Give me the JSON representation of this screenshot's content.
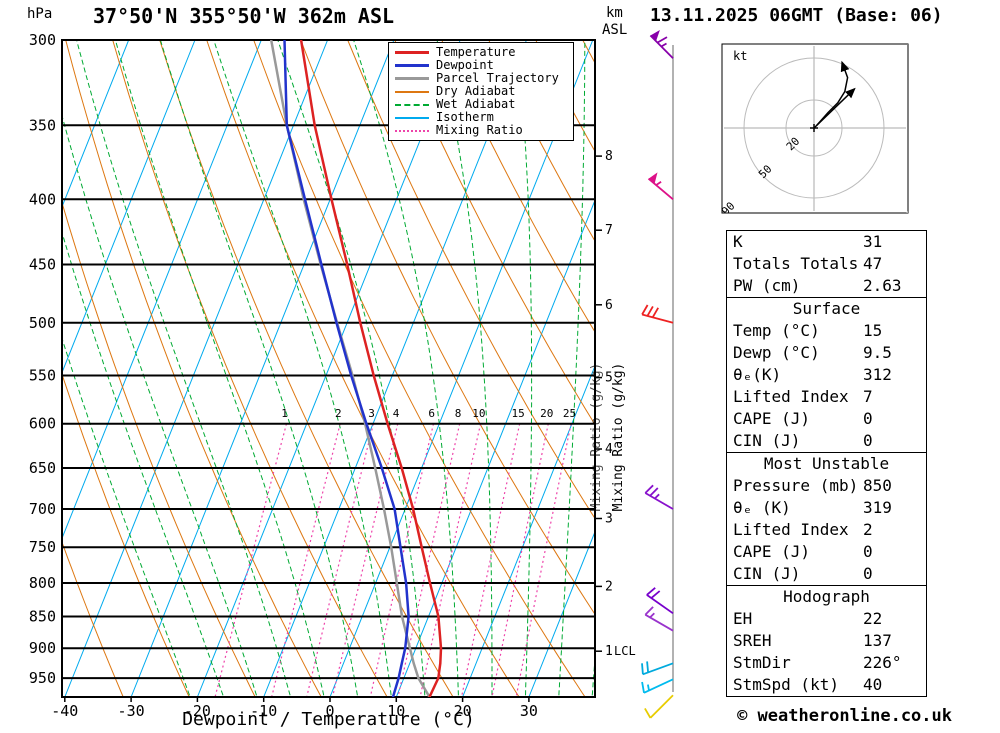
{
  "header": {
    "title": "37°50'N 355°50'W 362m ASL",
    "date_title": "13.11.2025 06GMT (Base: 06)"
  },
  "axes": {
    "pressure_unit": "hPa",
    "km_unit_line1": "km",
    "km_unit_line2": "ASL",
    "xlabel": "Dewpoint / Temperature (°C)",
    "mixing_ratio_label": "Mixing Ratio (g/kg)",
    "lcl_label": "LCL"
  },
  "legend": {
    "items": [
      {
        "label": "Temperature",
        "color": "#dd2222",
        "style": "solid",
        "width": 3
      },
      {
        "label": "Dewpoint",
        "color": "#2233cc",
        "style": "solid",
        "width": 3
      },
      {
        "label": "Parcel Trajectory",
        "color": "#999999",
        "style": "solid",
        "width": 3
      },
      {
        "label": "Dry Adiabat",
        "color": "#dd7711",
        "style": "solid",
        "width": 2
      },
      {
        "label": "Wet Adiabat",
        "color": "#00aa33",
        "style": "dashed",
        "width": 2
      },
      {
        "label": "Isotherm",
        "color": "#00aaee",
        "style": "solid",
        "width": 2
      },
      {
        "label": "Mixing Ratio",
        "color": "#ee44aa",
        "style": "dotted",
        "width": 2
      }
    ]
  },
  "hodograph": {
    "unit_label": "kt",
    "rings_kt": [
      20,
      50,
      90
    ],
    "ring_labels": [
      "20",
      "50",
      "90"
    ],
    "trace_uv_kt": [
      [
        2,
        2
      ],
      [
        10,
        11
      ],
      [
        17,
        18
      ],
      [
        22,
        26
      ],
      [
        24,
        36
      ],
      [
        20,
        47
      ]
    ],
    "storm_motion_uv_kt": [
      29,
      28
    ]
  },
  "table": {
    "sections": [
      {
        "rows": [
          [
            "K",
            "31"
          ],
          [
            "Totals Totals",
            "47"
          ],
          [
            "PW (cm)",
            "2.63"
          ]
        ]
      },
      {
        "title": "Surface",
        "rows": [
          [
            "Temp (°C)",
            "15"
          ],
          [
            "Dewp (°C)",
            "9.5"
          ],
          [
            "θₑ(K)",
            "312"
          ],
          [
            "Lifted Index",
            "7"
          ],
          [
            "CAPE (J)",
            "0"
          ],
          [
            "CIN (J)",
            "0"
          ]
        ]
      },
      {
        "title": "Most Unstable",
        "rows": [
          [
            "Pressure (mb)",
            "850"
          ],
          [
            "θₑ (K)",
            "319"
          ],
          [
            "Lifted Index",
            "2"
          ],
          [
            "CAPE (J)",
            "0"
          ],
          [
            "CIN (J)",
            "0"
          ]
        ]
      },
      {
        "title": "Hodograph",
        "rows": [
          [
            "EH",
            "22"
          ],
          [
            "SREH",
            "137"
          ],
          [
            "StmDir",
            "226°"
          ],
          [
            "StmSpd (kt)",
            "40"
          ]
        ]
      }
    ]
  },
  "footer": {
    "copyright": "© weatheronline.co.uk"
  },
  "chart_data": {
    "type": "skewt_log_p_sounding",
    "pressure_range_hpa": [
      300,
      983
    ],
    "pressure_ticks_hpa": [
      300,
      350,
      400,
      450,
      500,
      550,
      600,
      650,
      700,
      750,
      800,
      850,
      900,
      950
    ],
    "temp_axis_c": [
      -40,
      -30,
      -20,
      -10,
      0,
      10,
      20,
      30
    ],
    "km_asl_ticks": [
      {
        "km": 1,
        "p": 905
      },
      {
        "km": 2,
        "p": 805
      },
      {
        "km": 3,
        "p": 712
      },
      {
        "km": 4,
        "p": 628
      },
      {
        "km": 5,
        "p": 552
      },
      {
        "km": 6,
        "p": 484
      },
      {
        "km": 7,
        "p": 423
      },
      {
        "km": 8,
        "p": 370
      }
    ],
    "lcl": {
      "pressure_hpa": 905
    },
    "isotherms_c": {
      "min": -90,
      "max": 40,
      "step": 10
    },
    "dry_adiabats_c": {
      "min": -30,
      "max": 130,
      "step": 10
    },
    "wet_adiabats_c": {
      "min": -20,
      "max": 40,
      "step": 5
    },
    "mixing_ratio_lines_gkg": [
      1,
      2,
      3,
      4,
      6,
      8,
      10,
      15,
      20,
      25
    ],
    "temperature_profile": {
      "pressure_hpa": [
        983,
        950,
        925,
        900,
        850,
        800,
        750,
        700,
        650,
        600,
        550,
        500,
        450,
        400,
        350,
        300
      ],
      "temp_c": [
        15,
        15.2,
        14.6,
        13.8,
        11.5,
        8.2,
        4.8,
        1.2,
        -3,
        -7.8,
        -12.8,
        -18,
        -23.5,
        -29.8,
        -36.8,
        -44
      ]
    },
    "dewpoint_profile": {
      "pressure_hpa": [
        983,
        950,
        925,
        900,
        850,
        800,
        750,
        700,
        650,
        600,
        550,
        500,
        450,
        400,
        350,
        300
      ],
      "temp_c": [
        9.5,
        9.2,
        8.8,
        8.4,
        7,
        4.6,
        1.6,
        -1.6,
        -6,
        -11,
        -16.2,
        -21.6,
        -27.4,
        -33.8,
        -41,
        -46.5
      ]
    },
    "parcel_profile": {
      "pressure_hpa": [
        983,
        950,
        925,
        900,
        850,
        800,
        750,
        700,
        650,
        600,
        550,
        500,
        450,
        400,
        350,
        300
      ],
      "temp_c": [
        15,
        12.2,
        10.6,
        9.1,
        6,
        3.2,
        0.2,
        -3.2,
        -7,
        -11.2,
        -16,
        -21.5,
        -27.5,
        -34,
        -41,
        -48.5
      ]
    },
    "wind_barbs": [
      {
        "pressure_hpa": 310,
        "speed_kt": 65,
        "staff_dir_deg": 315,
        "color": "#8800aa"
      },
      {
        "pressure_hpa": 400,
        "speed_kt": 55,
        "staff_dir_deg": 310,
        "color": "#dd1188"
      },
      {
        "pressure_hpa": 500,
        "speed_kt": 30,
        "staff_dir_deg": 285,
        "color": "#ee2222"
      },
      {
        "pressure_hpa": 700,
        "speed_kt": 25,
        "staff_dir_deg": 300,
        "color": "#8811cc"
      },
      {
        "pressure_hpa": 845,
        "speed_kt": 20,
        "staff_dir_deg": 305,
        "color": "#7700cc"
      },
      {
        "pressure_hpa": 872,
        "speed_kt": 15,
        "staff_dir_deg": 300,
        "color": "#9933cc"
      },
      {
        "pressure_hpa": 925,
        "speed_kt": 20,
        "staff_dir_deg": 250,
        "color": "#00aadd"
      },
      {
        "pressure_hpa": 952,
        "speed_kt": 15,
        "staff_dir_deg": 245,
        "color": "#00bbee"
      },
      {
        "pressure_hpa": 980,
        "speed_kt": 10,
        "staff_dir_deg": 225,
        "color": "#e8cc00"
      }
    ],
    "colors": {
      "temperature": "#dd2222",
      "dewpoint": "#2233cc",
      "parcel": "#999999",
      "dry_adiabat": "#dd7711",
      "wet_adiabat": "#00aa33",
      "isotherm": "#00aaee",
      "mixing_ratio": "#ee44aa",
      "grid": "#000000"
    }
  }
}
